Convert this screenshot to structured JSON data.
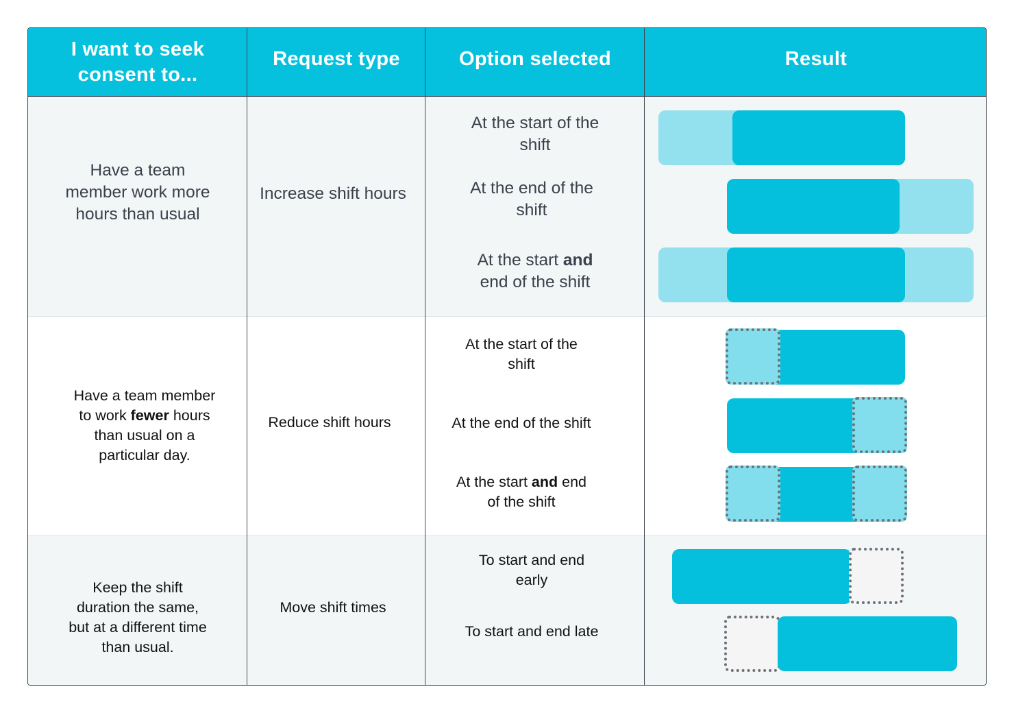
{
  "headers": {
    "col1": [
      "I want to seek",
      "consent to..."
    ],
    "col2": "Request type",
    "col3": "Option selected",
    "col4": "Result"
  },
  "rows": [
    {
      "intent": [
        "Have a team",
        "member work more",
        "hours than usual"
      ],
      "request_type": "Increase shift hours",
      "options": [
        {
          "line1": "At the start of the",
          "line2": "shift"
        },
        {
          "line1": "At the end of the",
          "line2": "shift"
        },
        {
          "line1_pre": "At the start ",
          "line1_bold": "and",
          "line2": "end of the shift"
        }
      ]
    },
    {
      "intent": {
        "line1": "Have a team member",
        "line2_pre": "to work ",
        "line2_bold": "fewer",
        "line2_post": " hours",
        "line3": "than usual on a",
        "line4": "particular day."
      },
      "request_type": "Reduce shift hours",
      "options": [
        {
          "line1": "At the start of the",
          "line2": "shift"
        },
        {
          "line1": "At the end of the shift"
        },
        {
          "line1_pre": "At the start ",
          "line1_bold": "and",
          "line1_post": " end",
          "line2": "of the shift"
        }
      ]
    },
    {
      "intent": [
        "Keep the shift",
        "duration the same,",
        "but at a different time",
        "than usual."
      ],
      "request_type": "Move shift times",
      "options": [
        {
          "line1": "To start and end",
          "line2": "early"
        },
        {
          "line1": "To start and end late"
        }
      ]
    }
  ],
  "colors": {
    "header": "#06c1de",
    "shift": "#04c0dd",
    "added_time": "#93e1ee",
    "removed_time": "#82deec",
    "dotted_border": "#6b7179"
  }
}
